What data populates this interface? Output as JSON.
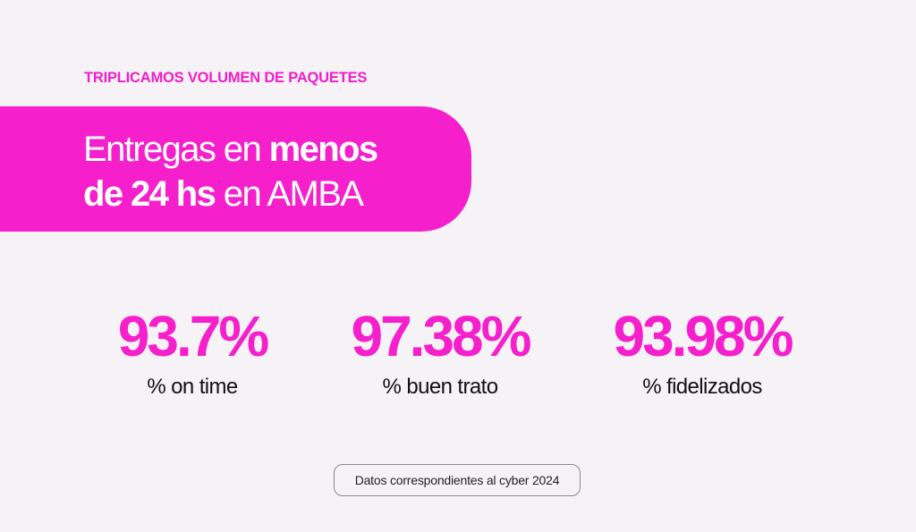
{
  "header": {
    "eyebrow": "TRIPLICAMOS VOLUMEN DE PAQUETES"
  },
  "banner": {
    "line1_regular": "Entregas en ",
    "line1_bold": "menos",
    "line2_bold": "de 24 hs",
    "line2_regular": " en AMBA",
    "background_color": "#f51fcc"
  },
  "stats": [
    {
      "value": "93.7%",
      "label": "% on time"
    },
    {
      "value": "97.38%",
      "label": "% buen trato"
    },
    {
      "value": "93.98%",
      "label": "% fidelizados"
    }
  ],
  "footer": {
    "note": "Datos correspondientes al cyber 2024"
  },
  "colors": {
    "accent": "#f51fcc",
    "background": "#f6f3f7",
    "text": "#111111"
  }
}
